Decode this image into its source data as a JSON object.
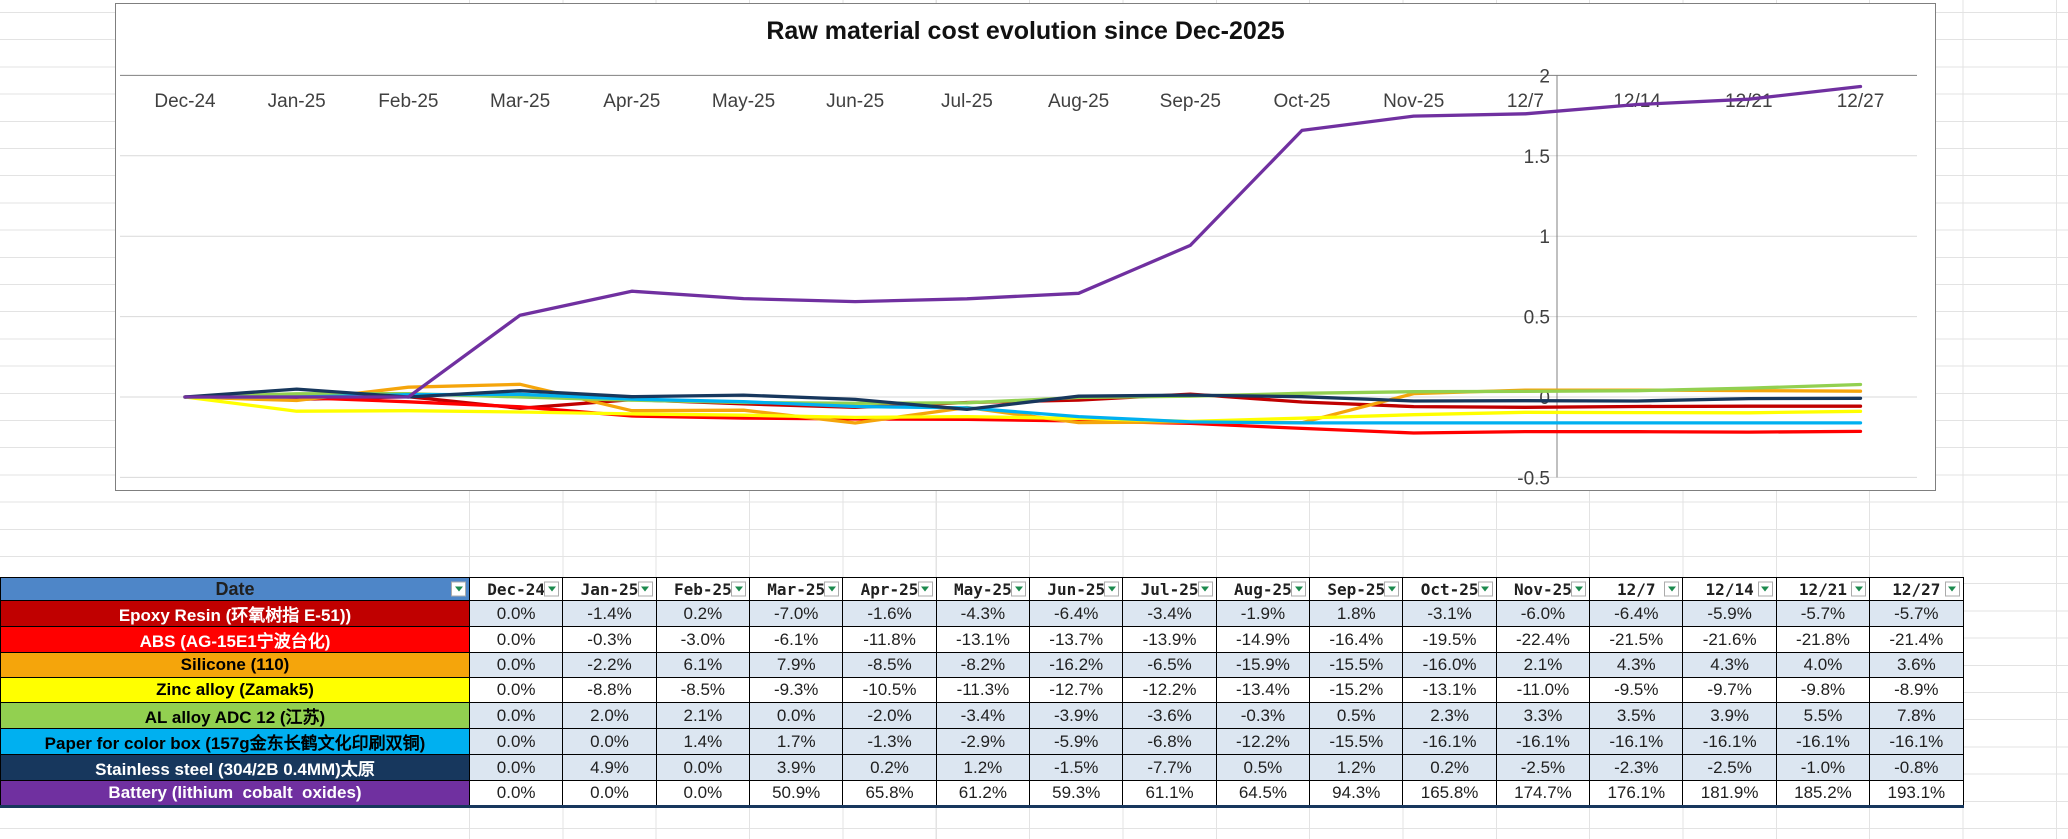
{
  "colors": {
    "table_header_bg": "#4E86C8",
    "band_row_bg": "#DCE6F1",
    "table_border": "#000000",
    "table_bottom_border": "#17375D",
    "filter_arrow": "#1C8A4E",
    "gridline": "#D9D9D9",
    "axis_line": "#808080",
    "chart_border": "#7F7F7F"
  },
  "chart_data": {
    "type": "line",
    "title": "Raw material cost evolution since Dec-2025",
    "categories": [
      "Dec-24",
      "Jan-25",
      "Feb-25",
      "Mar-25",
      "Apr-25",
      "May-25",
      "Jun-25",
      "Jul-25",
      "Aug-25",
      "Sep-25",
      "Oct-25",
      "Nov-25",
      "12/7",
      "12/14",
      "12/21",
      "12/27"
    ],
    "y_ticks": [
      2,
      1.5,
      1,
      0.5,
      0,
      -0.5
    ],
    "y_tick_labels": [
      "2",
      "1.5",
      "1",
      "0.5",
      "0",
      "-0.5"
    ],
    "ylim": [
      -0.5,
      2
    ],
    "grid": true,
    "legend": "none",
    "category_axis_position": "top",
    "value_axis_position": "right-inside",
    "series": [
      {
        "name": "Epoxy Resin (环氧树指 E-51))",
        "color": "#C00000",
        "values": [
          0,
          -0.014,
          0.002,
          -0.07,
          -0.016,
          -0.043,
          -0.064,
          -0.034,
          -0.019,
          0.018,
          -0.031,
          -0.06,
          -0.064,
          -0.059,
          -0.057,
          -0.057
        ]
      },
      {
        "name": "ABS (AG-15E1宁波台化)",
        "color": "#FF0000",
        "values": [
          0,
          -0.003,
          -0.03,
          -0.061,
          -0.118,
          -0.131,
          -0.137,
          -0.139,
          -0.149,
          -0.164,
          -0.195,
          -0.224,
          -0.215,
          -0.216,
          -0.218,
          -0.214
        ]
      },
      {
        "name": "Silicone (110)",
        "color": "#F5A50B",
        "values": [
          0,
          -0.022,
          0.061,
          0.079,
          -0.085,
          -0.082,
          -0.162,
          -0.065,
          -0.159,
          -0.155,
          -0.16,
          0.021,
          0.043,
          0.043,
          0.04,
          0.036
        ]
      },
      {
        "name": "Zinc alloy (Zamak5)",
        "color": "#FFFF00",
        "values": [
          0,
          -0.088,
          -0.085,
          -0.093,
          -0.105,
          -0.113,
          -0.127,
          -0.122,
          -0.134,
          -0.152,
          -0.131,
          -0.11,
          -0.095,
          -0.097,
          -0.098,
          -0.089
        ]
      },
      {
        "name": "AL alloy ADC 12 (江苏)",
        "color": "#92D050",
        "values": [
          0,
          0.02,
          0.021,
          0,
          -0.02,
          -0.034,
          -0.039,
          -0.036,
          -0.003,
          0.005,
          0.023,
          0.033,
          0.035,
          0.039,
          0.055,
          0.078
        ]
      },
      {
        "name": "Paper for color box (157g金东长鹤文化印刷双铜)",
        "color": "#00B0F0",
        "values": [
          0,
          0,
          0.014,
          0.017,
          -0.013,
          -0.029,
          -0.059,
          -0.068,
          -0.122,
          -0.155,
          -0.161,
          -0.161,
          -0.161,
          -0.161,
          -0.161,
          -0.161
        ]
      },
      {
        "name": "Stainless steel (304/2B 0.4MM)太原",
        "color": "#17375D",
        "values": [
          0,
          0.049,
          0,
          0.039,
          0.002,
          0.012,
          -0.015,
          -0.077,
          0.005,
          0.012,
          0.002,
          -0.025,
          -0.023,
          -0.025,
          -0.01,
          -0.008
        ]
      },
      {
        "name": "Battery (lithium  cobalt  oxides)",
        "color": "#7030A0",
        "values": [
          0,
          0,
          0,
          0.509,
          0.658,
          0.612,
          0.593,
          0.611,
          0.645,
          0.943,
          1.658,
          1.747,
          1.761,
          1.819,
          1.852,
          1.931
        ]
      }
    ]
  },
  "table": {
    "header": {
      "label": "Date",
      "filter_icon": "filter-dropdown-arrow",
      "columns": [
        "Dec-24",
        "Jan-25",
        "Feb-25",
        "Mar-25",
        "Apr-25",
        "May-25",
        "Jun-25",
        "Jul-25",
        "Aug-25",
        "Sep-25",
        "Oct-25",
        "Nov-25",
        "12/7",
        "12/14",
        "12/21",
        "12/27"
      ]
    },
    "rows": [
      {
        "label": "Epoxy Resin (环氧树指 E-51))",
        "bg": "#C00000",
        "fg": "#FFFFFF",
        "banded": true,
        "values": [
          "0.0%",
          "-1.4%",
          "0.2%",
          "-7.0%",
          "-1.6%",
          "-4.3%",
          "-6.4%",
          "-3.4%",
          "-1.9%",
          "1.8%",
          "-3.1%",
          "-6.0%",
          "-6.4%",
          "-5.9%",
          "-5.7%",
          "-5.7%"
        ]
      },
      {
        "label": "ABS (AG-15E1宁波台化)",
        "bg": "#FF0000",
        "fg": "#FFFFFF",
        "banded": false,
        "values": [
          "0.0%",
          "-0.3%",
          "-3.0%",
          "-6.1%",
          "-11.8%",
          "-13.1%",
          "-13.7%",
          "-13.9%",
          "-14.9%",
          "-16.4%",
          "-19.5%",
          "-22.4%",
          "-21.5%",
          "-21.6%",
          "-21.8%",
          "-21.4%"
        ]
      },
      {
        "label": "Silicone (110)",
        "bg": "#F5A50B",
        "fg": "#000000",
        "banded": true,
        "values": [
          "0.0%",
          "-2.2%",
          "6.1%",
          "7.9%",
          "-8.5%",
          "-8.2%",
          "-16.2%",
          "-6.5%",
          "-15.9%",
          "-15.5%",
          "-16.0%",
          "2.1%",
          "4.3%",
          "4.3%",
          "4.0%",
          "3.6%"
        ]
      },
      {
        "label": "Zinc alloy (Zamak5)",
        "bg": "#FFFF00",
        "fg": "#000000",
        "banded": false,
        "values": [
          "0.0%",
          "-8.8%",
          "-8.5%",
          "-9.3%",
          "-10.5%",
          "-11.3%",
          "-12.7%",
          "-12.2%",
          "-13.4%",
          "-15.2%",
          "-13.1%",
          "-11.0%",
          "-9.5%",
          "-9.7%",
          "-9.8%",
          "-8.9%"
        ]
      },
      {
        "label": "AL alloy ADC 12 (江苏)",
        "bg": "#92D050",
        "fg": "#000000",
        "banded": true,
        "values": [
          "0.0%",
          "2.0%",
          "2.1%",
          "0.0%",
          "-2.0%",
          "-3.4%",
          "-3.9%",
          "-3.6%",
          "-0.3%",
          "0.5%",
          "2.3%",
          "3.3%",
          "3.5%",
          "3.9%",
          "5.5%",
          "7.8%"
        ]
      },
      {
        "label": "Paper for color box (157g金东长鹤文化印刷双铜)",
        "bg": "#00B0F0",
        "fg": "#000000",
        "banded": true,
        "values": [
          "0.0%",
          "0.0%",
          "1.4%",
          "1.7%",
          "-1.3%",
          "-2.9%",
          "-5.9%",
          "-6.8%",
          "-12.2%",
          "-15.5%",
          "-16.1%",
          "-16.1%",
          "-16.1%",
          "-16.1%",
          "-16.1%",
          "-16.1%"
        ]
      },
      {
        "label": "Stainless steel (304/2B 0.4MM)太原",
        "bg": "#17375D",
        "fg": "#FFFFFF",
        "banded": true,
        "values": [
          "0.0%",
          "4.9%",
          "0.0%",
          "3.9%",
          "0.2%",
          "1.2%",
          "-1.5%",
          "-7.7%",
          "0.5%",
          "1.2%",
          "0.2%",
          "-2.5%",
          "-2.3%",
          "-2.5%",
          "-1.0%",
          "-0.8%"
        ]
      },
      {
        "label": "Battery (lithium  cobalt  oxides)",
        "bg": "#7030A0",
        "fg": "#FFFFFF",
        "banded": false,
        "values": [
          "0.0%",
          "0.0%",
          "0.0%",
          "50.9%",
          "65.8%",
          "61.2%",
          "59.3%",
          "61.1%",
          "64.5%",
          "94.3%",
          "165.8%",
          "174.7%",
          "176.1%",
          "181.9%",
          "185.2%",
          "193.1%"
        ]
      }
    ]
  }
}
